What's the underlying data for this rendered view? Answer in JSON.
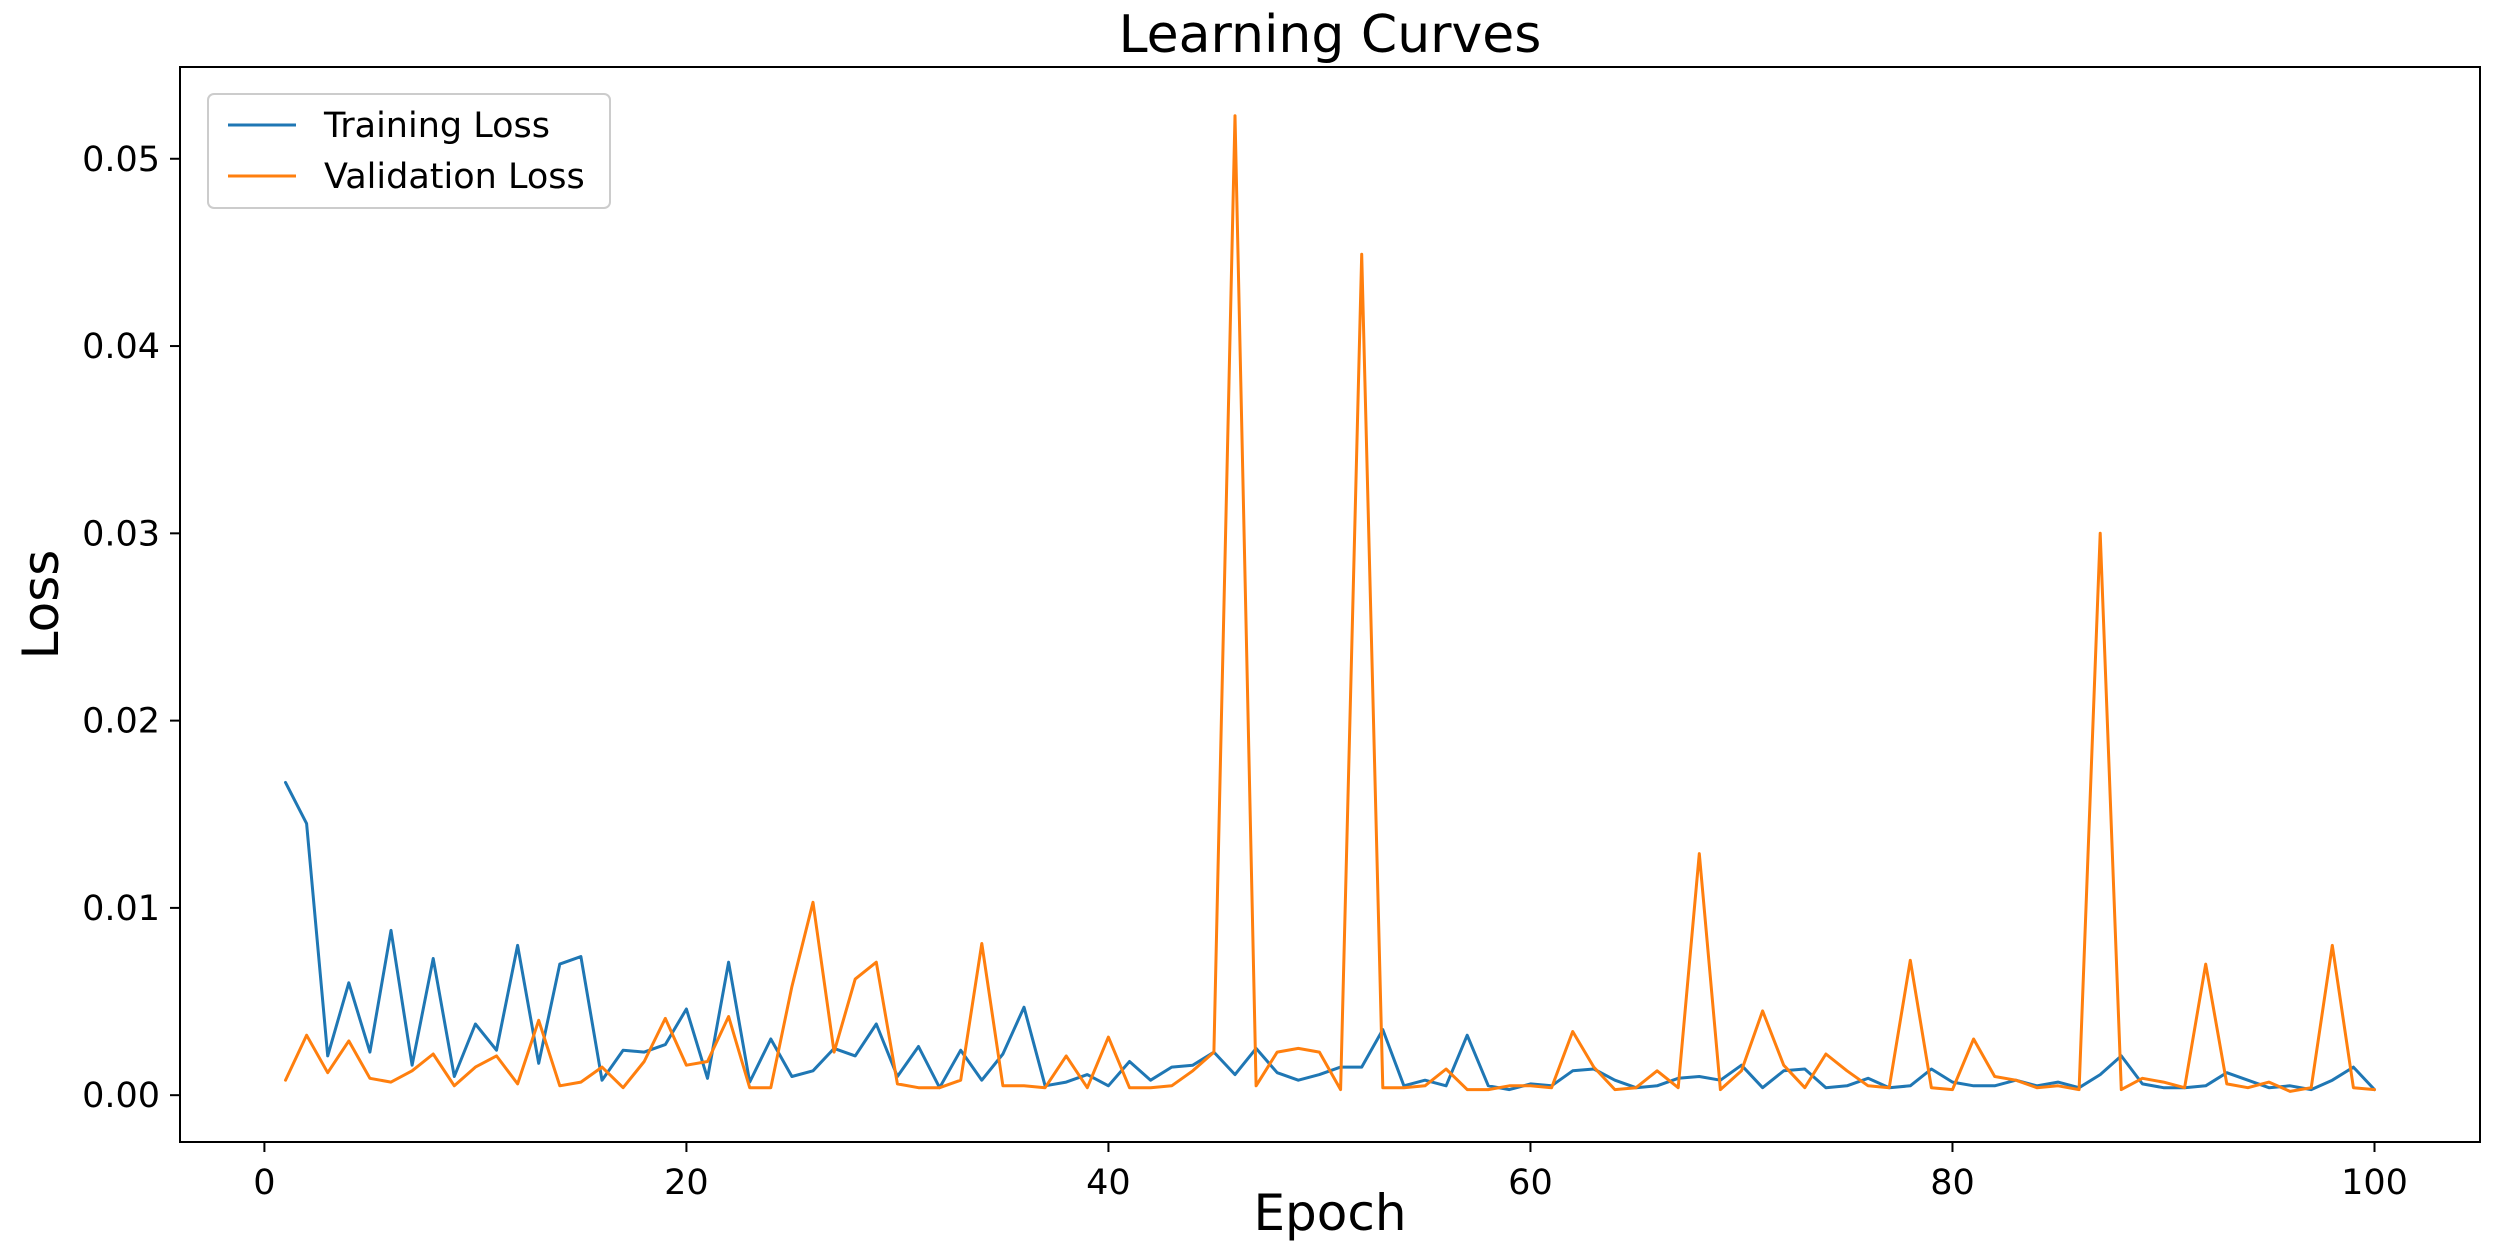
{
  "chart_data": {
    "type": "line",
    "title": "Learning Curves",
    "xlabel": "Epoch",
    "ylabel": "Loss",
    "xlim": [
      -4,
      105
    ],
    "ylim": [
      -0.0025,
      0.0549
    ],
    "x_ticks": [
      0,
      20,
      40,
      60,
      80,
      100
    ],
    "x_tick_labels": [
      "0",
      "20",
      "40",
      "60",
      "80",
      "100"
    ],
    "y_ticks": [
      0.0,
      0.01,
      0.02,
      0.03,
      0.04,
      0.05
    ],
    "y_tick_labels": [
      "0.00",
      "0.01",
      "0.02",
      "0.03",
      "0.04",
      "0.05"
    ],
    "grid": false,
    "legend_position": "top-left",
    "x": [
      1,
      2,
      3,
      4,
      5,
      6,
      7,
      8,
      9,
      10,
      11,
      12,
      13,
      14,
      15,
      16,
      17,
      18,
      19,
      20,
      21,
      22,
      23,
      24,
      25,
      26,
      27,
      28,
      29,
      30,
      31,
      32,
      33,
      34,
      35,
      36,
      37,
      38,
      39,
      40,
      41,
      42,
      43,
      44,
      45,
      46,
      47,
      48,
      49,
      50,
      51,
      52,
      53,
      54,
      55,
      56,
      57,
      58,
      59,
      60,
      61,
      62,
      63,
      64,
      65,
      66,
      67,
      68,
      69,
      70,
      71,
      72,
      73,
      74,
      75,
      76,
      77,
      78,
      79,
      80,
      81,
      82,
      83,
      84,
      85,
      86,
      87,
      88,
      89,
      90,
      91,
      92,
      93,
      94,
      95,
      96,
      97,
      98,
      99,
      100
    ],
    "series": [
      {
        "name": "Training Loss",
        "color": "#1f77b4",
        "values": [
          0.0167,
          0.0145,
          0.0021,
          0.006,
          0.0023,
          0.0088,
          0.0016,
          0.0073,
          0.001,
          0.0038,
          0.0024,
          0.008,
          0.0017,
          0.007,
          0.0074,
          0.0008,
          0.0024,
          0.0023,
          0.0027,
          0.0046,
          0.0009,
          0.0071,
          0.0007,
          0.003,
          0.001,
          0.0013,
          0.0025,
          0.0021,
          0.0038,
          0.001,
          0.0026,
          0.0004,
          0.0024,
          0.0008,
          0.0022,
          0.0047,
          0.0005,
          0.0007,
          0.0011,
          0.0005,
          0.0018,
          0.0008,
          0.0015,
          0.0016,
          0.0023,
          0.0011,
          0.0025,
          0.0012,
          0.0008,
          0.0011,
          0.0015,
          0.0015,
          0.0035,
          0.0005,
          0.0008,
          0.0005,
          0.0032,
          0.0005,
          0.0003,
          0.0006,
          0.0005,
          0.0013,
          0.0014,
          0.0008,
          0.0004,
          0.0005,
          0.0009,
          0.001,
          0.0008,
          0.0016,
          0.0004,
          0.0013,
          0.0014,
          0.0004,
          0.0005,
          0.0009,
          0.0004,
          0.0005,
          0.0014,
          0.0007,
          0.0005,
          0.0005,
          0.0008,
          0.0005,
          0.0007,
          0.0004,
          0.0011,
          0.0021,
          0.0006,
          0.0004,
          0.0004,
          0.0005,
          0.0012,
          0.0008,
          0.0004,
          0.0005,
          0.0003,
          0.0008,
          0.0015,
          0.0003
        ]
      },
      {
        "name": "Validation Loss",
        "color": "#ff7f0e",
        "values": [
          0.0008,
          0.0032,
          0.0012,
          0.0029,
          0.0009,
          0.0007,
          0.0013,
          0.0022,
          0.0005,
          0.0015,
          0.0021,
          0.0006,
          0.004,
          0.0005,
          0.0007,
          0.0015,
          0.0004,
          0.0018,
          0.0041,
          0.0016,
          0.0018,
          0.0042,
          0.0004,
          0.0004,
          0.0058,
          0.0103,
          0.0023,
          0.0062,
          0.0071,
          0.0006,
          0.0004,
          0.0004,
          0.0008,
          0.0081,
          0.0005,
          0.0005,
          0.0004,
          0.0021,
          0.0004,
          0.0031,
          0.0004,
          0.0004,
          0.0005,
          0.0013,
          0.0023,
          0.0523,
          0.0005,
          0.0023,
          0.0025,
          0.0023,
          0.0003,
          0.0449,
          0.0004,
          0.0004,
          0.0005,
          0.0014,
          0.0003,
          0.0003,
          0.0005,
          0.0005,
          0.0004,
          0.0034,
          0.0015,
          0.0003,
          0.0004,
          0.0013,
          0.0004,
          0.0129,
          0.0003,
          0.0013,
          0.0045,
          0.0016,
          0.0004,
          0.0022,
          0.0013,
          0.0005,
          0.0004,
          0.0072,
          0.0004,
          0.0003,
          0.003,
          0.001,
          0.0008,
          0.0004,
          0.0005,
          0.0003,
          0.03,
          0.0003,
          0.0009,
          0.0007,
          0.0004,
          0.007,
          0.0006,
          0.0004,
          0.0007,
          0.0002,
          0.0004,
          0.008,
          0.0004,
          0.0003
        ]
      }
    ]
  }
}
